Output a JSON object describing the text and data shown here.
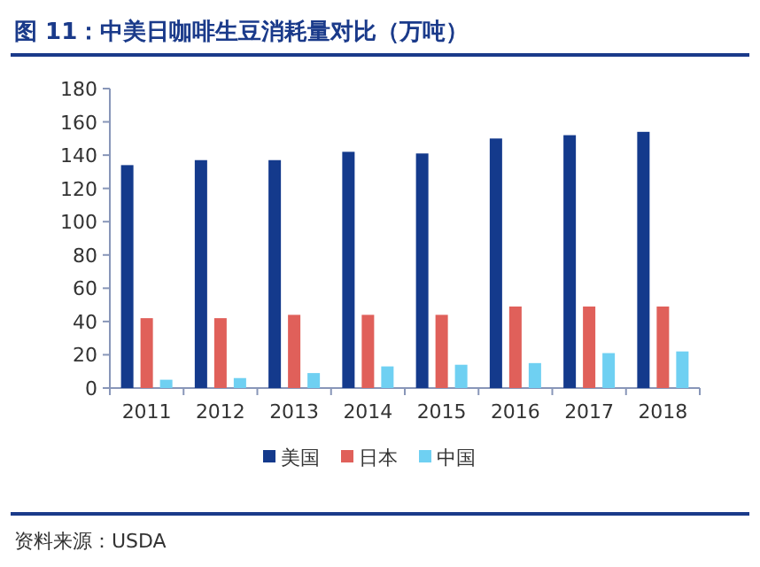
{
  "chart_data": {
    "type": "bar",
    "title": "图 11：中美日咖啡生豆消耗量对比（万吨）",
    "categories": [
      "2011",
      "2012",
      "2013",
      "2014",
      "2015",
      "2016",
      "2017",
      "2018"
    ],
    "series": [
      {
        "name": "美国",
        "color": "#143a8c",
        "values": [
          134,
          137,
          137,
          142,
          141,
          150,
          152,
          154
        ]
      },
      {
        "name": "日本",
        "color": "#e0605a",
        "values": [
          42,
          42,
          44,
          44,
          44,
          49,
          49,
          49
        ]
      },
      {
        "name": "中国",
        "color": "#6fd0f2",
        "values": [
          5,
          6,
          9,
          13,
          14,
          15,
          21,
          22
        ]
      }
    ],
    "ylim": [
      0,
      180
    ],
    "yticks": [
      0,
      20,
      40,
      60,
      80,
      100,
      120,
      140,
      160,
      180
    ],
    "grid": false,
    "legend": "bottom",
    "annotations": [
      "资料来源：USDA"
    ]
  }
}
